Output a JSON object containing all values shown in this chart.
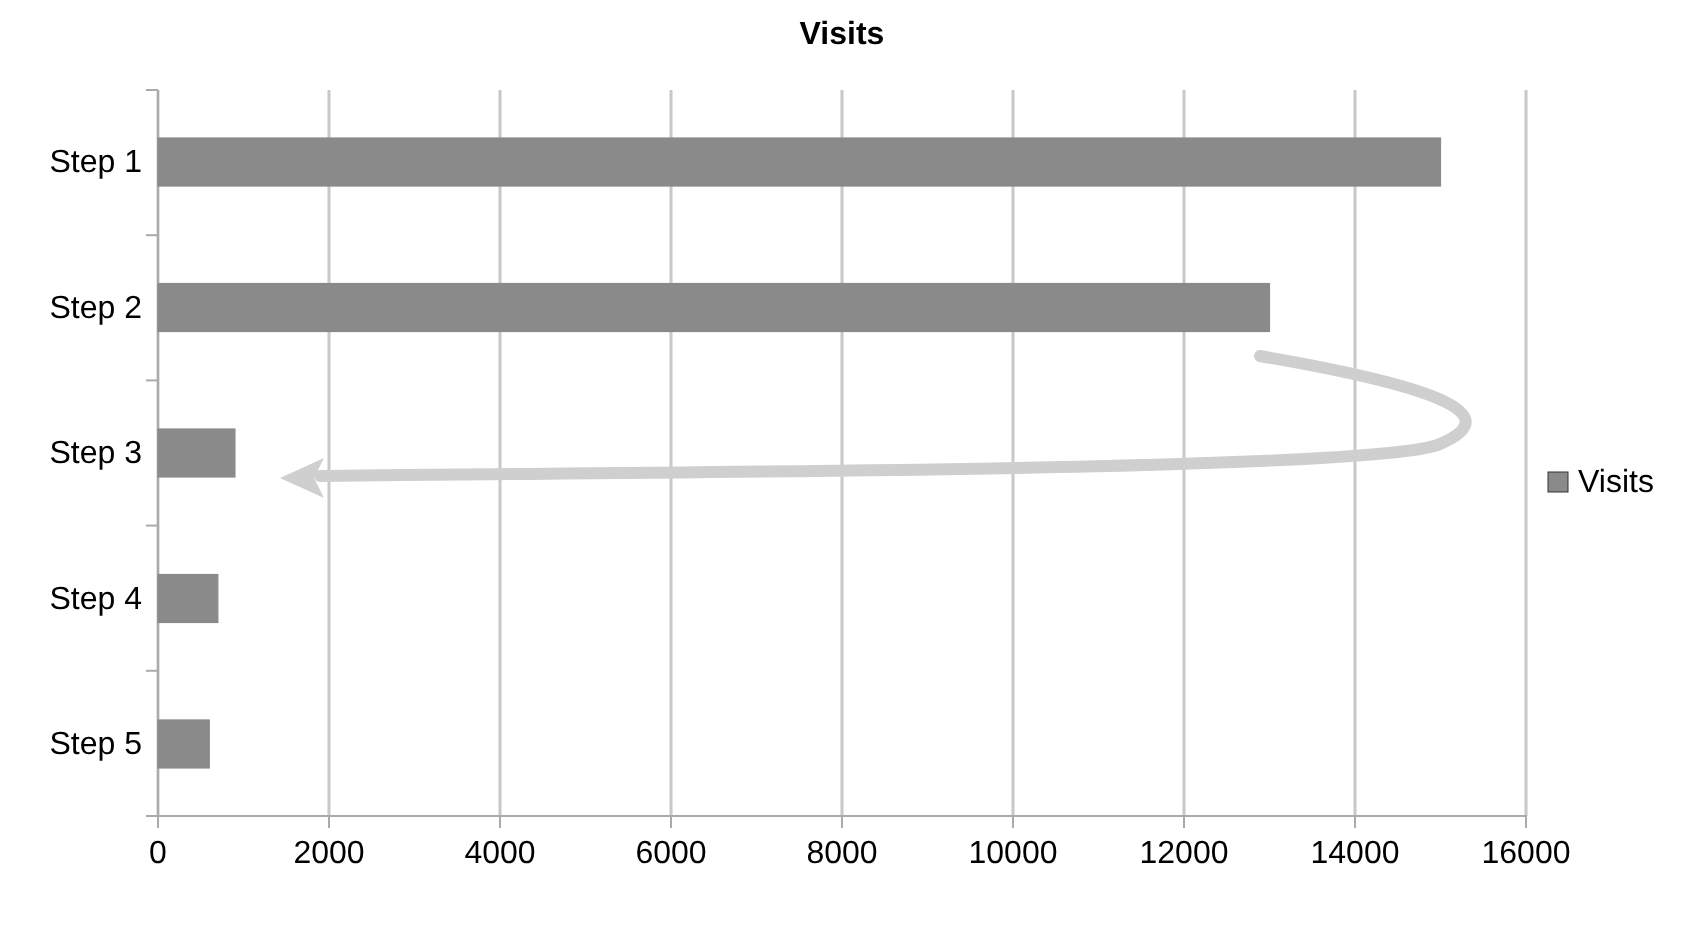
{
  "chart_data": {
    "type": "bar",
    "title": "Visits",
    "orientation": "horizontal",
    "categories": [
      "Step 1",
      "Step 2",
      "Step 3",
      "Step 4",
      "Step 5"
    ],
    "series": [
      {
        "name": "Visits",
        "color": "#8a8a8a",
        "values": [
          15000,
          13000,
          900,
          700,
          600
        ]
      }
    ],
    "xlim": [
      0,
      16000
    ],
    "xticks": [
      0,
      2000,
      4000,
      6000,
      8000,
      10000,
      12000,
      14000,
      16000
    ],
    "grid": "x",
    "legend": "right"
  }
}
